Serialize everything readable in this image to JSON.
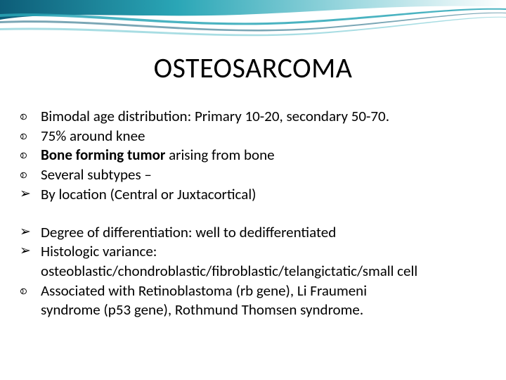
{
  "colors": {
    "wave_teal": "#2aa6b6",
    "wave_deep": "#0d5d78",
    "wave_light": "#9fd9e0",
    "text": "#000000",
    "bg": "#ffffff"
  },
  "title": "OSTEOSARCOMA",
  "typography": {
    "title_fontsize": 40,
    "body_fontsize": 21,
    "title_family": "Calibri Light",
    "body_family": "Calibri"
  },
  "bullets": {
    "script": "စ",
    "arrow": "➢"
  },
  "block1": [
    {
      "b": "script",
      "pre": "   ",
      "text": "Bimodal age distribution: Primary 10-20, secondary 50-70."
    },
    {
      "b": "script",
      "pre": "   ",
      "text": "75% around knee"
    },
    {
      "b": "script",
      "pre": "   ",
      "bold": "Bone forming tumor",
      "text": " arising from bone"
    },
    {
      "b": "script",
      "pre": "   ",
      "text": "Several subtypes –"
    },
    {
      "b": "arrow",
      "pre": "  ",
      "text": "By location (Central or Juxtacortical)"
    }
  ],
  "block2": [
    {
      "b": "arrow",
      "pre": "",
      "text": "Degree of differentiation: well to dedifferentiated"
    },
    {
      "b": "arrow",
      "pre": "",
      "text": "Histologic variance:"
    },
    {
      "cont": true,
      "text": "osteoblastic/chondroblastic/fibroblastic/telangictatic/small cell"
    },
    {
      "b": "script",
      "pre": "   ",
      "text": "Associated with Retinoblastoma (rb gene), Li Fraumeni"
    },
    {
      "cont": true,
      "pad": 0,
      "text": "syndrome (p53 gene), Rothmund Thomsen syndrome."
    }
  ]
}
